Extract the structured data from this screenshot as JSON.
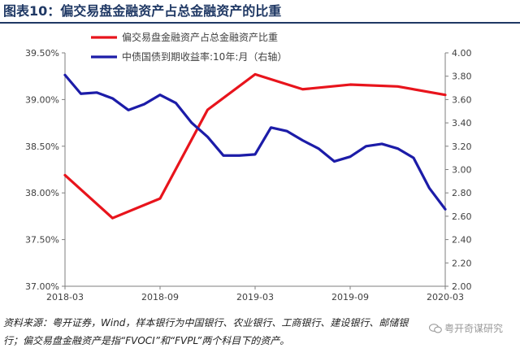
{
  "title": "图表10：偏交易盘金融资产占总金融资产的比重",
  "source_note": "资料来源：粤开证券，Wind，样本银行为中国银行、农业银行、工商银行、建设银行、邮储银行；偏交易盘金融资产是指“FVOCI”和“FVPL”两个科目下的资产。",
  "watermark": "粤开奇谋研究",
  "chart_data": {
    "type": "line",
    "x": [
      "2018-03",
      "2018-04",
      "2018-05",
      "2018-06",
      "2018-07",
      "2018-08",
      "2018-09",
      "2018-10",
      "2018-11",
      "2018-12",
      "2019-01",
      "2019-02",
      "2019-03",
      "2019-04",
      "2019-05",
      "2019-06",
      "2019-07",
      "2019-08",
      "2019-09",
      "2019-10",
      "2019-11",
      "2019-12",
      "2020-01",
      "2020-02",
      "2020-03"
    ],
    "x_tick_labels": [
      "2018-03",
      "2018-09",
      "2019-03",
      "2019-09",
      "2020-03"
    ],
    "series": [
      {
        "name": "偏交易盘金融资产占总金融资产比重",
        "axis": "left",
        "color": "#e8141c",
        "x": [
          "2018-03",
          "2018-06",
          "2018-09",
          "2018-12",
          "2019-03",
          "2019-06",
          "2019-09",
          "2019-12",
          "2020-03"
        ],
        "values": [
          38.19,
          37.73,
          37.94,
          38.89,
          39.27,
          39.11,
          39.16,
          39.14,
          39.05
        ]
      },
      {
        "name": "中债国债到期收益率:10年:月（右轴）",
        "axis": "right",
        "color": "#1c1ca8",
        "x": [
          "2018-03",
          "2018-04",
          "2018-05",
          "2018-06",
          "2018-07",
          "2018-08",
          "2018-09",
          "2018-10",
          "2018-11",
          "2018-12",
          "2019-01",
          "2019-02",
          "2019-03",
          "2019-04",
          "2019-05",
          "2019-06",
          "2019-07",
          "2019-08",
          "2019-09",
          "2019-10",
          "2019-11",
          "2019-12",
          "2020-01",
          "2020-02",
          "2020-03"
        ],
        "values": [
          3.81,
          3.65,
          3.66,
          3.61,
          3.51,
          3.56,
          3.64,
          3.57,
          3.4,
          3.28,
          3.12,
          3.12,
          3.13,
          3.36,
          3.33,
          3.25,
          3.18,
          3.07,
          3.11,
          3.2,
          3.22,
          3.18,
          3.1,
          2.84,
          2.66
        ]
      }
    ],
    "y_left": {
      "min": 37.0,
      "max": 39.5,
      "tick_labels": [
        "37.00%",
        "37.50%",
        "38.00%",
        "38.50%",
        "39.00%",
        "39.50%"
      ]
    },
    "y_right": {
      "min": 2.0,
      "max": 4.0,
      "tick_labels": [
        "2.00",
        "2.20",
        "2.40",
        "2.60",
        "2.80",
        "3.00",
        "3.20",
        "3.40",
        "3.60",
        "3.80",
        "4.00"
      ]
    },
    "legend": [
      "偏交易盘金融资产占总金融资产比重",
      "中债国债到期收益率:10年:月（右轴）"
    ],
    "legend_position": "top-center",
    "grid": false
  }
}
